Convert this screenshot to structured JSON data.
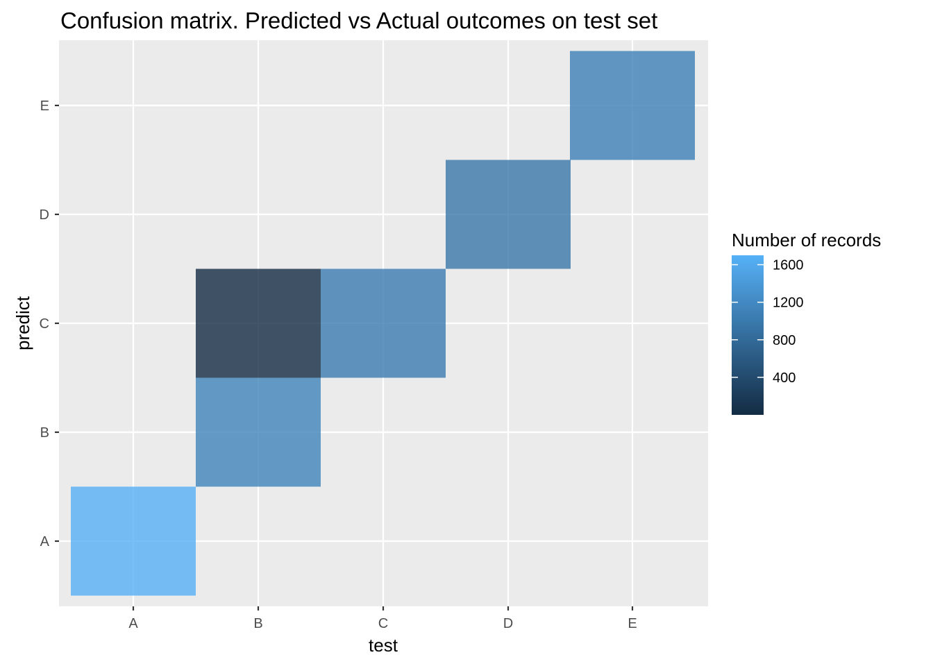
{
  "chart_data": {
    "type": "heatmap",
    "title": "Confusion matrix. Predicted vs Actual outcomes on test set",
    "xlabel": "test",
    "ylabel": "predict",
    "x_categories": [
      "A",
      "B",
      "C",
      "D",
      "E"
    ],
    "y_categories": [
      "A",
      "B",
      "C",
      "D",
      "E"
    ],
    "cells": [
      {
        "test": "A",
        "predict": "A",
        "count": 1674
      },
      {
        "test": "B",
        "predict": "B",
        "count": 1125
      },
      {
        "test": "B",
        "predict": "C",
        "count": 14
      },
      {
        "test": "C",
        "predict": "C",
        "count": 1026
      },
      {
        "test": "D",
        "predict": "D",
        "count": 964
      },
      {
        "test": "E",
        "predict": "E",
        "count": 1082
      }
    ],
    "legend": {
      "title": "Number of records",
      "ticks": [
        400,
        800,
        1200,
        1600
      ],
      "tick_labels": [
        "400",
        "800",
        "1200",
        "1600"
      ],
      "range": [
        0,
        1700
      ],
      "colors": {
        "low": "#132b43",
        "high": "#56b1f7"
      },
      "placement": "right"
    },
    "panel_background": "#ebebeb",
    "grid_color": "#ffffff",
    "grid": true
  }
}
